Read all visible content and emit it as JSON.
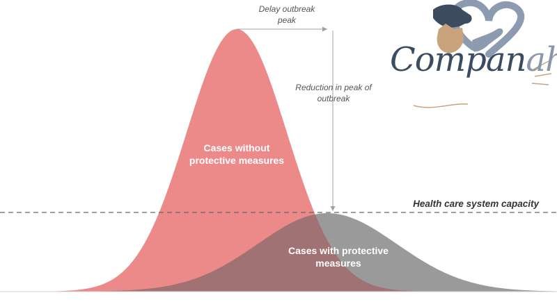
{
  "annotations": {
    "delay": "Delay outbreak\npeak",
    "reduction": "Reduction in peak of\noutbreak",
    "capacity": "Health care system capacity"
  },
  "curves": {
    "without": {
      "label": "Cases without\nprotective measures",
      "color": "#ec8a8a"
    },
    "with": {
      "label": "Cases with protective\nmeasures",
      "color": "#9a9a9a"
    },
    "overlap_color": "#a17274"
  },
  "logo": {
    "name": "Companah",
    "name_main": "Compan",
    "name_accent": "ah"
  },
  "colors": {
    "arrow": "#a0a0a0",
    "capacity_line": "#666666"
  }
}
